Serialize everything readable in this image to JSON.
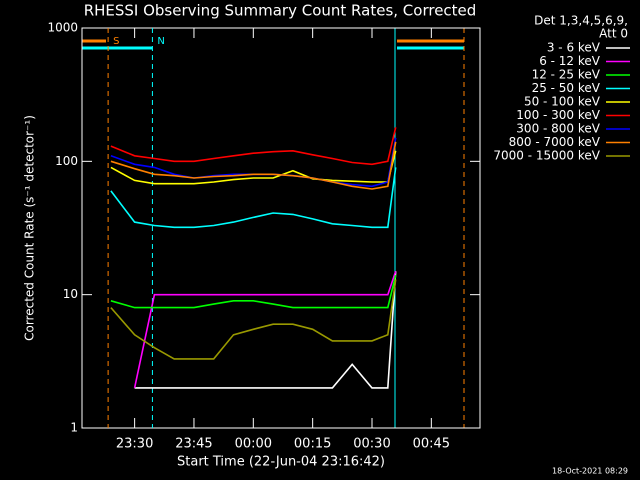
{
  "chart_data": {
    "type": "line",
    "title": "RHESSI Observing Summary Count Rates, Corrected",
    "x_label": "Start Time (22-Jun-04 23:16:42)",
    "y_label": "Corrected Count Rate (s⁻¹ detector⁻¹)",
    "legend_header": [
      "Det 1,3,4,5,6,9,",
      "Att 0"
    ],
    "legend_position": "right",
    "timestamp": "18-Oct-2021 08:29",
    "annotations": [
      {
        "text": "S",
        "x": 23.3,
        "color": "#ff8000"
      },
      {
        "text": "N",
        "x": 34.5,
        "color": "#00ffff"
      }
    ],
    "ylog": true,
    "ylim": [
      1,
      1000
    ],
    "yticks": [
      1,
      10,
      100,
      1000
    ],
    "xlim": [
      16.7,
      117.3
    ],
    "xticks": [
      {
        "value": 30,
        "label": "23:30"
      },
      {
        "value": 45,
        "label": "23:45"
      },
      {
        "value": 60,
        "label": "00:00"
      },
      {
        "value": 75,
        "label": "00:15"
      },
      {
        "value": 90,
        "label": "00:30"
      },
      {
        "value": 105,
        "label": "00:45"
      }
    ],
    "x": [
      24,
      30,
      35,
      40,
      45,
      50,
      55,
      60,
      65,
      70,
      75,
      80,
      85,
      90,
      94,
      96
    ],
    "series": [
      {
        "name": "3 - 6 keV",
        "color": "#ffffff",
        "values": [
          null,
          2,
          2,
          2,
          2,
          2,
          2,
          2,
          2,
          2,
          2,
          2,
          3,
          2,
          2,
          15
        ]
      },
      {
        "name": "6 - 12 keV",
        "color": "#ff00ff",
        "values": [
          null,
          2,
          10,
          10,
          10,
          10,
          10,
          10,
          10,
          10,
          10,
          10,
          10,
          10,
          10,
          15
        ]
      },
      {
        "name": "12 - 25 keV",
        "color": "#00ff00",
        "values": [
          9,
          8,
          8,
          8,
          8,
          8.5,
          9,
          9,
          8.5,
          8,
          8,
          8,
          8,
          8,
          8,
          14
        ]
      },
      {
        "name": "25 - 50 keV",
        "color": "#00ffff",
        "values": [
          60,
          35,
          33,
          32,
          32,
          33,
          35,
          38,
          41,
          40,
          37,
          34,
          33,
          32,
          32,
          90
        ]
      },
      {
        "name": "50 - 100 keV",
        "color": "#ffff00",
        "values": [
          90,
          72,
          68,
          68,
          68,
          70,
          73,
          75,
          75,
          85,
          74,
          72,
          71,
          70,
          70,
          120
        ]
      },
      {
        "name": "100 - 300 keV",
        "color": "#ff0000",
        "values": [
          130,
          110,
          105,
          100,
          100,
          105,
          110,
          115,
          118,
          120,
          112,
          105,
          98,
          95,
          100,
          180
        ]
      },
      {
        "name": "300 - 800 keV",
        "color": "#0000ff",
        "values": [
          110,
          95,
          90,
          80,
          75,
          78,
          80,
          80,
          80,
          78,
          75,
          70,
          67,
          65,
          70,
          150
        ]
      },
      {
        "name": "800 - 7000 keV",
        "color": "#ff8000",
        "values": [
          100,
          88,
          80,
          78,
          75,
          77,
          78,
          80,
          80,
          78,
          75,
          70,
          65,
          62,
          65,
          140
        ]
      },
      {
        "name": "7000 - 15000 keV",
        "color": "#999900",
        "values": [
          8,
          5,
          4,
          3.3,
          3.3,
          3.3,
          5,
          5.5,
          6,
          6,
          5.5,
          4.5,
          4.5,
          4.5,
          5,
          13
        ]
      }
    ]
  }
}
